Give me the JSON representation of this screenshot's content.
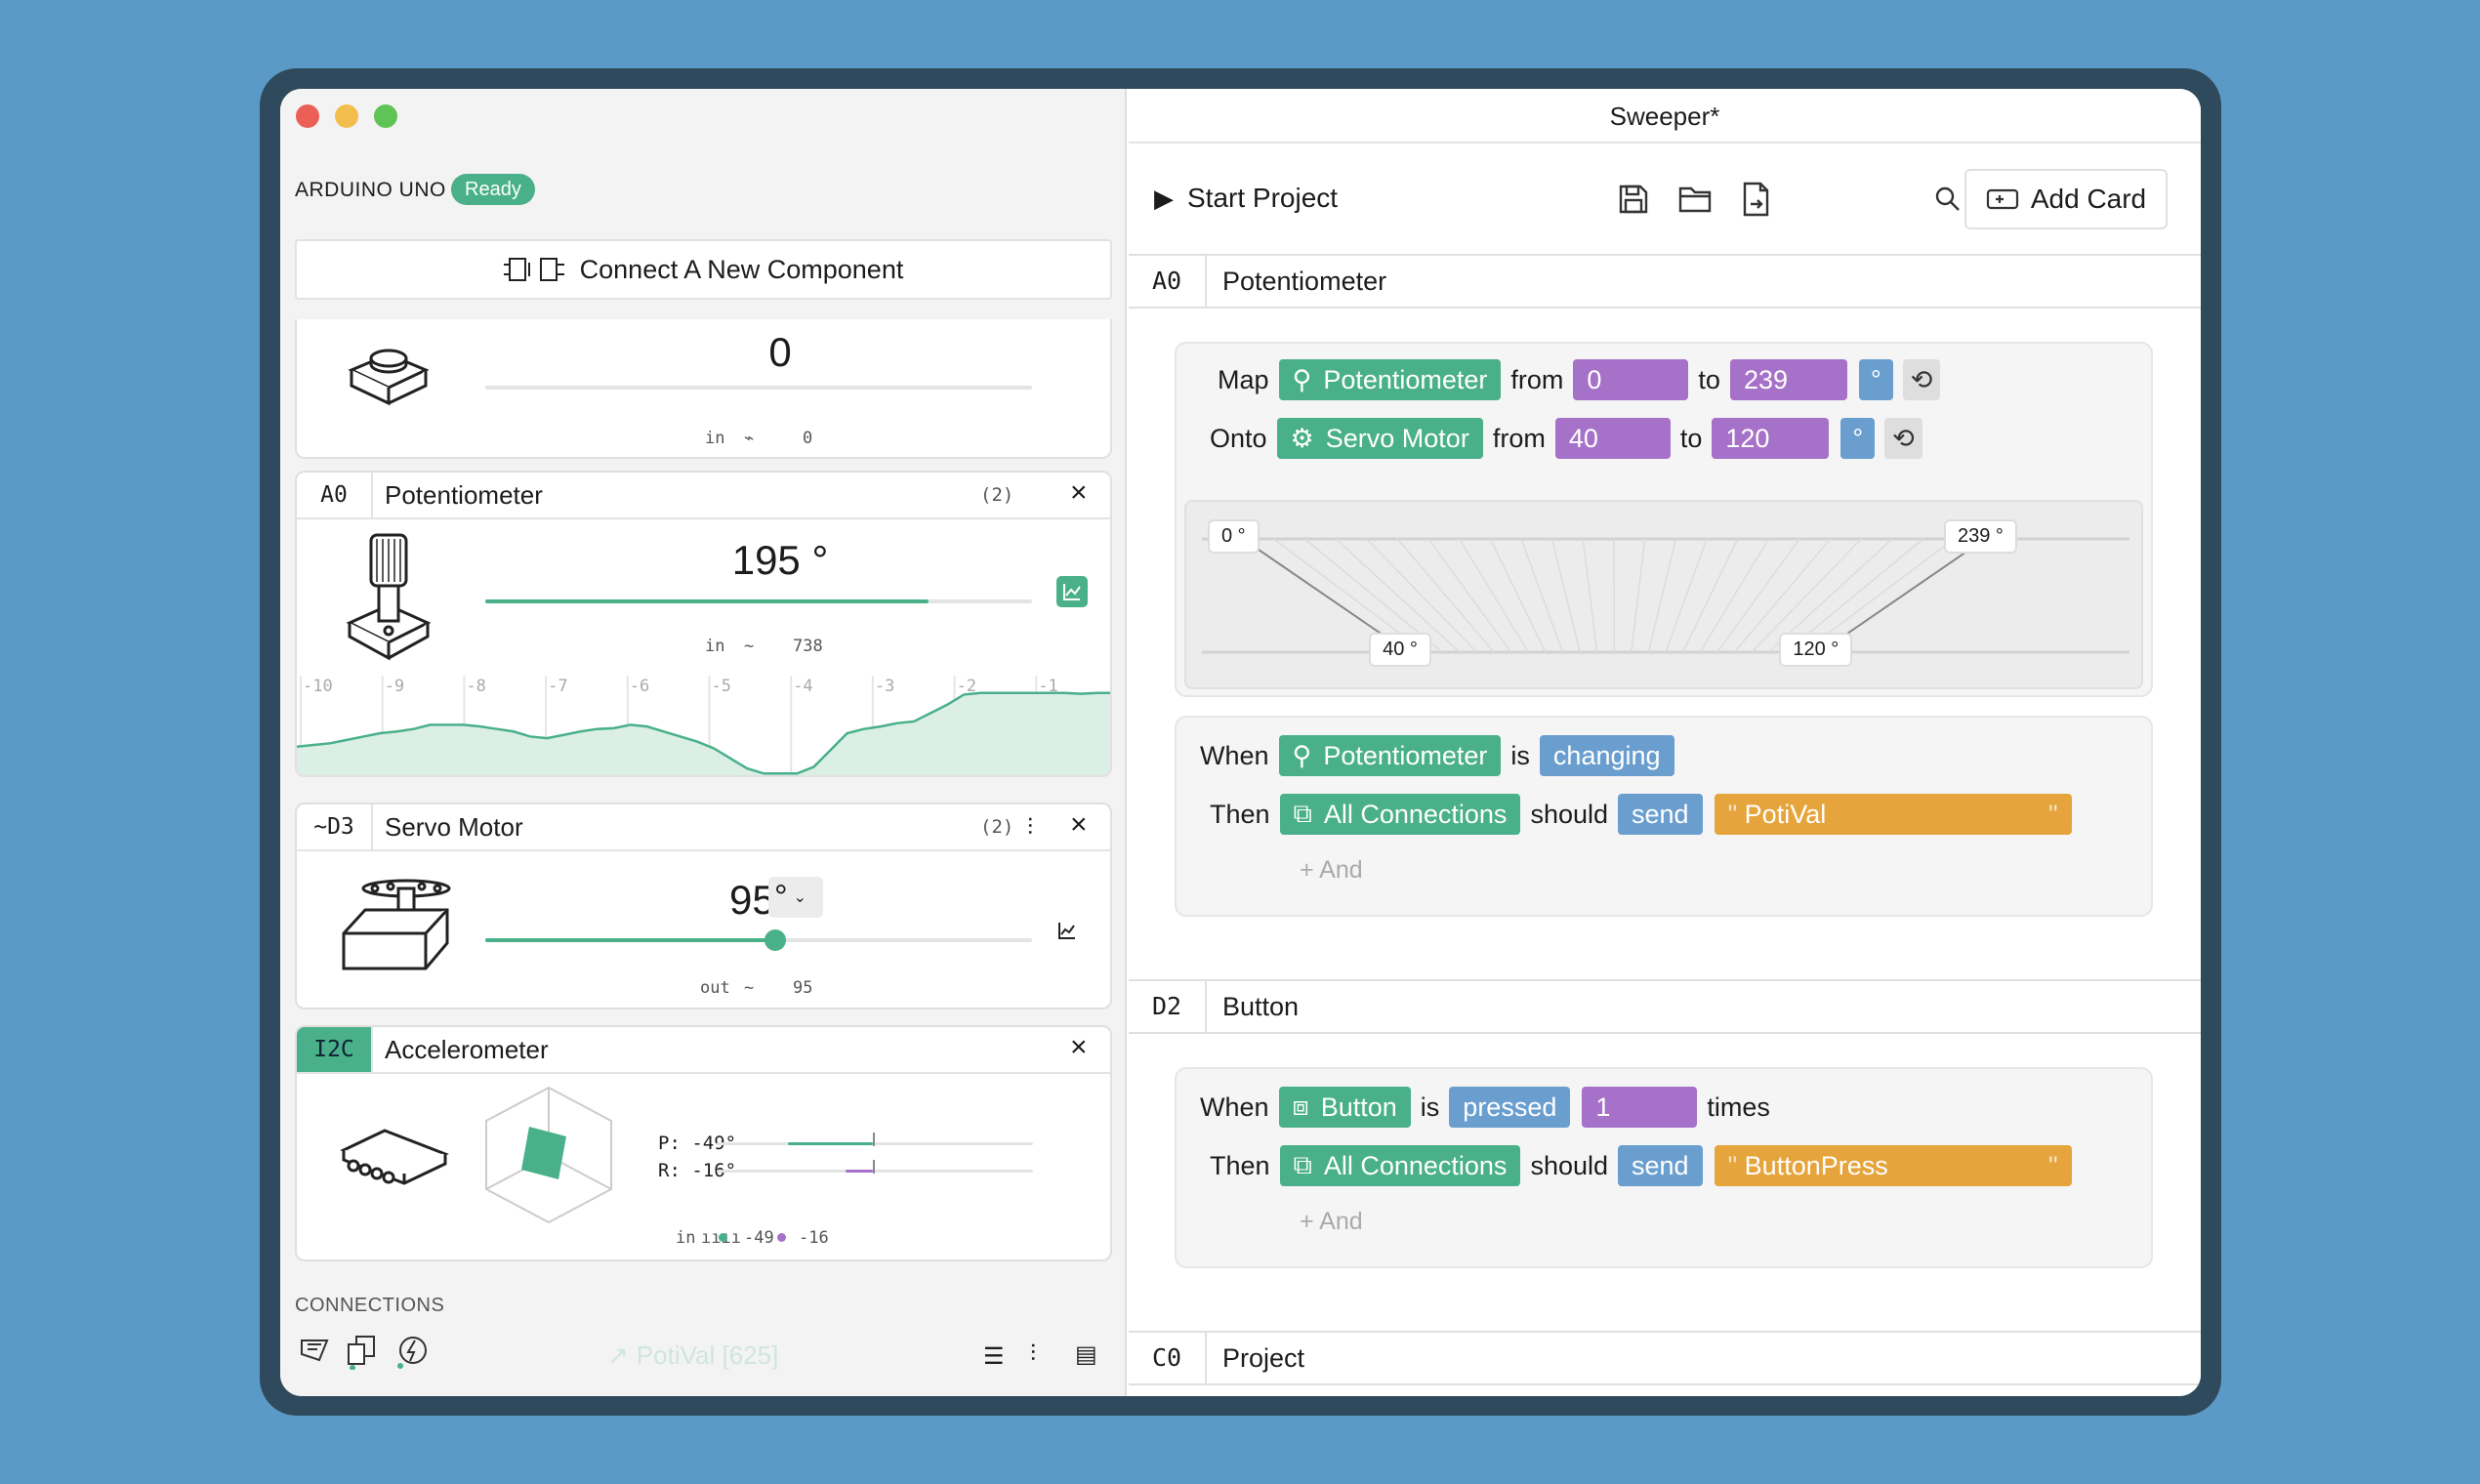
{
  "window": {
    "title": "Sweeper*"
  },
  "board": {
    "name": "ARDUINO UNO",
    "status": "Ready"
  },
  "connect_button": {
    "label": "Connect A New Component"
  },
  "components": {
    "button": {
      "value": "0",
      "io_label": "in",
      "raw": "0",
      "value_fraction": 0
    },
    "potentiometer": {
      "pin": "A0",
      "title": "Potentiometer",
      "count": "(2)",
      "value": "195 °",
      "value_fraction": 0.81,
      "io_label": "in",
      "raw": "738",
      "ticks": [
        "-10",
        "-9",
        "-8",
        "-7",
        "-6",
        "-5",
        "-4",
        "-3",
        "-2",
        "-1"
      ],
      "history": [
        0.34,
        0.36,
        0.38,
        0.42,
        0.46,
        0.5,
        0.52,
        0.55,
        0.6,
        0.6,
        0.6,
        0.58,
        0.55,
        0.52,
        0.46,
        0.44,
        0.48,
        0.52,
        0.55,
        0.56,
        0.6,
        0.58,
        0.52,
        0.46,
        0.4,
        0.32,
        0.2,
        0.08,
        0.02,
        0.02,
        0.02,
        0.1,
        0.3,
        0.5,
        0.55,
        0.58,
        0.62,
        0.64,
        0.74,
        0.84,
        0.96,
        0.98,
        0.98,
        0.98,
        0.98,
        0.98,
        0.98,
        0.97,
        0.98,
        0.98
      ]
    },
    "servo": {
      "pin": "~D3",
      "title": "Servo Motor",
      "count": "(2)",
      "value": "95",
      "unit": "°",
      "value_fraction": 0.53,
      "io_label": "out",
      "raw": "95"
    },
    "accelerometer": {
      "pin": "I2C",
      "title": "Accelerometer",
      "pitch": "P: -49°",
      "roll": "R: -16°",
      "io_label": "in",
      "pitch_val": "-49",
      "roll_val": "-16",
      "pitch_value": -49,
      "roll_value": -16
    },
    "connections": {
      "heading": "CONNECTIONS",
      "status": "PotiVal [625]"
    }
  },
  "toolbar": {
    "start_label": "Start Project",
    "add_card_label": "Add Card"
  },
  "sections": {
    "a0": {
      "pin": "A0",
      "title": "Potentiometer",
      "map": {
        "map_word": "Map",
        "component": "Potentiometer",
        "from_word": "from",
        "from": "0",
        "to_word": "to",
        "to": "239",
        "unit": "°"
      },
      "onto": {
        "onto_word": "Onto",
        "component": "Servo Motor",
        "from_word": "from",
        "from": "40",
        "to_word": "to",
        "to": "120",
        "unit": "°"
      },
      "viz": {
        "in_min": 0,
        "in_max": 239,
        "out_min": 40,
        "out_max": 120,
        "lbl_in_min": "0 °",
        "lbl_in_max": "239 °",
        "lbl_out_min": "40 °",
        "lbl_out_max": "120 °"
      },
      "rule": {
        "when": "When",
        "component": "Potentiometer",
        "is": "is",
        "state": "changing",
        "then": "Then",
        "target": "All Connections",
        "should": "should",
        "action": "send",
        "message": "PotiVal",
        "and": "+ And"
      }
    },
    "d2": {
      "pin": "D2",
      "title": "Button",
      "rule": {
        "when": "When",
        "component": "Button",
        "is": "is",
        "state": "pressed",
        "count": "1",
        "times": "times",
        "then": "Then",
        "target": "All Connections",
        "should": "should",
        "action": "send",
        "message": "ButtonPress",
        "and": "+ And"
      }
    },
    "c0": {
      "pin": "C0",
      "title": "Project"
    }
  },
  "colors": {
    "accent": "#49b08a",
    "purple": "#a671c8",
    "blue": "#6a9ecf",
    "orange": "#e6a43c",
    "background": "#5b9ac6"
  }
}
